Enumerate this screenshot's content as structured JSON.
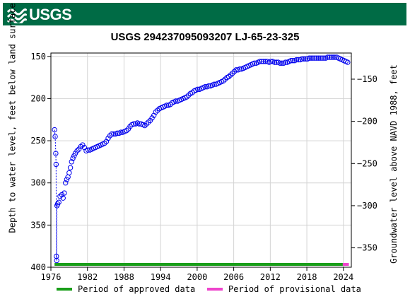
{
  "header": {
    "logo_text": "USGS"
  },
  "chart_data": {
    "type": "scatter",
    "title": "USGS 294237095093207 LJ-65-23-325",
    "ylabel_left": "Depth to water level, feet below land surface",
    "ylabel_right": "Groundwater level above NAVD 1988, feet",
    "xlim": [
      1976,
      2025.3
    ],
    "ylim_left": [
      400,
      146
    ],
    "ylim_right": [
      -373,
      -119
    ],
    "left_inverted": true,
    "grid": true,
    "x_ticks": [
      1976,
      1982,
      1988,
      1994,
      2000,
      2006,
      2012,
      2018,
      2024
    ],
    "y_ticks_left": [
      150,
      200,
      250,
      300,
      350,
      400
    ],
    "y_ticks_right": [
      -150,
      -200,
      -250,
      -300,
      -350
    ],
    "series": [
      {
        "name": "Depth to water level",
        "color": "#0000ee",
        "marker": "open-circle",
        "points": [
          [
            1976.6,
            237
          ],
          [
            1976.7,
            245
          ],
          [
            1976.8,
            265
          ],
          [
            1976.85,
            278
          ],
          [
            1976.9,
            387
          ],
          [
            1976.95,
            392
          ],
          [
            1977.0,
            327
          ],
          [
            1977.1,
            325
          ],
          [
            1977.3,
            323
          ],
          [
            1977.5,
            316
          ],
          [
            1977.8,
            314
          ],
          [
            1978.0,
            318
          ],
          [
            1978.2,
            312
          ],
          [
            1978.4,
            300
          ],
          [
            1978.6,
            296
          ],
          [
            1978.8,
            293
          ],
          [
            1979.0,
            288
          ],
          [
            1979.2,
            282
          ],
          [
            1979.4,
            275
          ],
          [
            1979.6,
            271
          ],
          [
            1979.8,
            268
          ],
          [
            1980.0,
            265
          ],
          [
            1980.3,
            262
          ],
          [
            1980.6,
            260
          ],
          [
            1980.9,
            257
          ],
          [
            1981.2,
            255
          ],
          [
            1981.5,
            258
          ],
          [
            1981.8,
            262
          ],
          [
            1982.1,
            261
          ],
          [
            1982.4,
            261
          ],
          [
            1982.7,
            260
          ],
          [
            1983.0,
            259
          ],
          [
            1983.3,
            258
          ],
          [
            1983.6,
            257
          ],
          [
            1983.9,
            256
          ],
          [
            1984.2,
            255
          ],
          [
            1984.5,
            254
          ],
          [
            1984.8,
            253
          ],
          [
            1985.1,
            251
          ],
          [
            1985.4,
            247
          ],
          [
            1985.7,
            244
          ],
          [
            1986.0,
            242
          ],
          [
            1986.3,
            242
          ],
          [
            1986.6,
            242
          ],
          [
            1986.9,
            241
          ],
          [
            1987.2,
            241
          ],
          [
            1987.5,
            240
          ],
          [
            1987.8,
            240
          ],
          [
            1988.1,
            239
          ],
          [
            1988.4,
            238
          ],
          [
            1988.7,
            236
          ],
          [
            1989.0,
            233
          ],
          [
            1989.3,
            231
          ],
          [
            1989.6,
            230
          ],
          [
            1989.9,
            230
          ],
          [
            1990.2,
            229
          ],
          [
            1990.5,
            230
          ],
          [
            1990.8,
            230
          ],
          [
            1991.1,
            231
          ],
          [
            1991.4,
            232
          ],
          [
            1991.7,
            230
          ],
          [
            1992.0,
            228
          ],
          [
            1992.3,
            226
          ],
          [
            1992.6,
            223
          ],
          [
            1992.9,
            220
          ],
          [
            1993.2,
            216
          ],
          [
            1993.5,
            214
          ],
          [
            1993.8,
            212
          ],
          [
            1994.1,
            211
          ],
          [
            1994.4,
            210
          ],
          [
            1994.7,
            209
          ],
          [
            1995.0,
            208
          ],
          [
            1995.3,
            208
          ],
          [
            1995.6,
            207
          ],
          [
            1995.9,
            205
          ],
          [
            1996.2,
            204
          ],
          [
            1996.5,
            203
          ],
          [
            1996.8,
            203
          ],
          [
            1997.1,
            202
          ],
          [
            1997.4,
            201
          ],
          [
            1997.7,
            200
          ],
          [
            1998.0,
            199
          ],
          [
            1998.3,
            198
          ],
          [
            1998.6,
            196
          ],
          [
            1998.9,
            194
          ],
          [
            1999.2,
            193
          ],
          [
            1999.5,
            191
          ],
          [
            1999.8,
            190
          ],
          [
            2000.1,
            189
          ],
          [
            2000.4,
            189
          ],
          [
            2000.7,
            188
          ],
          [
            2001.0,
            187
          ],
          [
            2001.3,
            186
          ],
          [
            2001.6,
            186
          ],
          [
            2001.9,
            185
          ],
          [
            2002.2,
            185
          ],
          [
            2002.5,
            184
          ],
          [
            2002.8,
            183
          ],
          [
            2003.1,
            183
          ],
          [
            2003.4,
            182
          ],
          [
            2003.7,
            181
          ],
          [
            2004.0,
            180
          ],
          [
            2004.3,
            179
          ],
          [
            2004.6,
            177
          ],
          [
            2004.9,
            175
          ],
          [
            2005.2,
            174
          ],
          [
            2005.5,
            172
          ],
          [
            2005.8,
            170
          ],
          [
            2006.1,
            168
          ],
          [
            2006.4,
            166
          ],
          [
            2006.7,
            166
          ],
          [
            2007.0,
            165
          ],
          [
            2007.3,
            165
          ],
          [
            2007.6,
            164
          ],
          [
            2007.9,
            163
          ],
          [
            2008.2,
            162
          ],
          [
            2008.5,
            161
          ],
          [
            2008.8,
            160
          ],
          [
            2009.1,
            159
          ],
          [
            2009.4,
            158
          ],
          [
            2009.7,
            158
          ],
          [
            2010.0,
            157
          ],
          [
            2010.3,
            156
          ],
          [
            2010.6,
            156
          ],
          [
            2010.9,
            156
          ],
          [
            2011.2,
            156
          ],
          [
            2011.5,
            156
          ],
          [
            2011.8,
            157
          ],
          [
            2012.1,
            156
          ],
          [
            2012.4,
            156
          ],
          [
            2012.7,
            157
          ],
          [
            2013.0,
            157
          ],
          [
            2013.3,
            157
          ],
          [
            2013.6,
            158
          ],
          [
            2013.9,
            158
          ],
          [
            2014.2,
            158
          ],
          [
            2014.5,
            157
          ],
          [
            2014.8,
            157
          ],
          [
            2015.1,
            156
          ],
          [
            2015.4,
            155
          ],
          [
            2015.7,
            155
          ],
          [
            2016.0,
            155
          ],
          [
            2016.3,
            154
          ],
          [
            2016.6,
            154
          ],
          [
            2016.9,
            154
          ],
          [
            2017.2,
            153
          ],
          [
            2017.5,
            153
          ],
          [
            2017.8,
            153
          ],
          [
            2018.1,
            153
          ],
          [
            2018.4,
            152
          ],
          [
            2018.7,
            152
          ],
          [
            2019.0,
            152
          ],
          [
            2019.3,
            152
          ],
          [
            2019.6,
            152
          ],
          [
            2019.9,
            152
          ],
          [
            2020.2,
            152
          ],
          [
            2020.5,
            152
          ],
          [
            2020.8,
            152
          ],
          [
            2021.1,
            152
          ],
          [
            2021.4,
            151
          ],
          [
            2021.7,
            151
          ],
          [
            2022.0,
            151
          ],
          [
            2022.3,
            151
          ],
          [
            2022.6,
            151
          ],
          [
            2022.9,
            151
          ],
          [
            2023.2,
            152
          ],
          [
            2023.5,
            153
          ],
          [
            2023.8,
            154
          ],
          [
            2024.1,
            155
          ],
          [
            2024.4,
            156
          ],
          [
            2024.7,
            157
          ]
        ]
      }
    ],
    "approval_periods": [
      {
        "label": "Period of approved data",
        "color": "#1a9e1a",
        "start": 1976.6,
        "end": 2023.9
      },
      {
        "label": "Period of provisional data",
        "color": "#ee44cc",
        "start": 2023.9,
        "end": 2024.9
      }
    ]
  },
  "legend": {
    "approved_label": "Period of approved data",
    "provisional_label": "Period of provisional data"
  }
}
